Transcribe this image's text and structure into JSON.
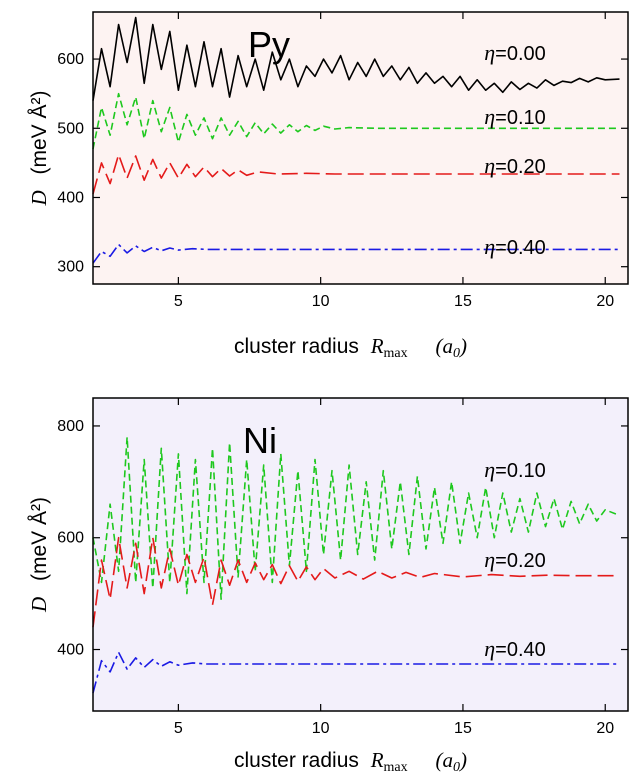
{
  "chart_data": [
    {
      "type": "line",
      "title": "Py",
      "xlabel": "cluster radius",
      "xlabel_symbol": "R",
      "xlabel_subscript": "max",
      "xlabel_unit_symbol": "a",
      "xlabel_unit_subscript": "0",
      "ylabel_symbol": "D",
      "ylabel_unit": "(meV Å²)",
      "xlim": [
        2,
        20.8
      ],
      "ylim": [
        275,
        668
      ],
      "xticks": [
        5,
        10,
        15,
        20
      ],
      "yticks": [
        300,
        400,
        500,
        600
      ],
      "background": "#fdf3f2",
      "series": [
        {
          "name": "η=0.00",
          "eta_symbol": "η",
          "eta_value": "=0.00",
          "color": "#000000",
          "style": "solid",
          "asymptote": 571,
          "x": [
            2.0,
            2.3,
            2.6,
            2.9,
            3.2,
            3.5,
            3.8,
            4.1,
            4.4,
            4.7,
            5.0,
            5.3,
            5.6,
            5.9,
            6.2,
            6.5,
            6.8,
            7.1,
            7.4,
            7.7,
            8.0,
            8.3,
            8.6,
            8.9,
            9.2,
            9.5,
            9.8,
            10.1,
            10.4,
            10.7,
            11.0,
            11.3,
            11.6,
            11.9,
            12.2,
            12.5,
            12.8,
            13.1,
            13.4,
            13.7,
            14.0,
            14.3,
            14.6,
            14.9,
            15.2,
            15.5,
            15.8,
            16.1,
            16.4,
            16.7,
            17.0,
            17.3,
            17.6,
            17.9,
            18.2,
            18.5,
            18.8,
            19.1,
            19.4,
            19.7,
            20.0,
            20.5
          ],
          "values": [
            540,
            615,
            560,
            650,
            595,
            660,
            565,
            650,
            585,
            640,
            555,
            620,
            560,
            625,
            560,
            615,
            545,
            605,
            560,
            600,
            555,
            610,
            570,
            600,
            560,
            590,
            575,
            600,
            580,
            605,
            570,
            595,
            575,
            600,
            575,
            590,
            570,
            588,
            565,
            580,
            565,
            575,
            560,
            575,
            555,
            570,
            555,
            565,
            552,
            567,
            556,
            565,
            558,
            570,
            562,
            568,
            566,
            572,
            567,
            573,
            570,
            571
          ]
        },
        {
          "name": "η=0.10",
          "eta_symbol": "η",
          "eta_value": "=0.10",
          "color": "#1ec81e",
          "style": "dashed",
          "asymptote": 500,
          "x": [
            2.0,
            2.3,
            2.6,
            2.9,
            3.2,
            3.5,
            3.8,
            4.1,
            4.4,
            4.7,
            5.0,
            5.3,
            5.6,
            5.9,
            6.2,
            6.5,
            6.8,
            7.1,
            7.4,
            7.7,
            8.0,
            8.3,
            8.6,
            8.9,
            9.2,
            9.5,
            9.8,
            10.1,
            10.5,
            11.0,
            12.0,
            13.0,
            14.0,
            15.0,
            16.0,
            17.0,
            18.0,
            19.0,
            20.5
          ],
          "values": [
            470,
            530,
            490,
            550,
            505,
            545,
            485,
            540,
            495,
            530,
            480,
            520,
            490,
            515,
            485,
            515,
            490,
            510,
            488,
            508,
            492,
            506,
            493,
            505,
            495,
            504,
            497,
            503,
            499,
            501,
            500,
            500,
            500,
            500,
            500,
            500,
            500,
            500,
            500
          ]
        },
        {
          "name": "η=0.20",
          "eta_symbol": "η",
          "eta_value": "=0.20",
          "color": "#e41a1a",
          "style": "longdash",
          "asymptote": 434,
          "x": [
            2.0,
            2.3,
            2.6,
            2.9,
            3.2,
            3.5,
            3.8,
            4.1,
            4.4,
            4.7,
            5.0,
            5.3,
            5.6,
            5.9,
            6.2,
            6.5,
            6.8,
            7.1,
            7.4,
            7.8,
            8.5,
            9.5,
            10.5,
            11.5,
            13.0,
            15.0,
            17.0,
            19.0,
            20.5
          ],
          "values": [
            405,
            450,
            420,
            462,
            428,
            460,
            425,
            455,
            428,
            450,
            428,
            448,
            430,
            444,
            430,
            442,
            431,
            440,
            432,
            437,
            434,
            435,
            434,
            434,
            434,
            434,
            434,
            434,
            434
          ]
        },
        {
          "name": "η=0.40",
          "eta_symbol": "η",
          "eta_value": "=0.40",
          "color": "#1a1ae4",
          "style": "dashdot",
          "asymptote": 325,
          "x": [
            2.0,
            2.3,
            2.6,
            2.9,
            3.2,
            3.5,
            3.8,
            4.1,
            4.4,
            4.7,
            5.0,
            5.5,
            6.0,
            7.0,
            8.0,
            10.0,
            12.0,
            15.0,
            18.0,
            20.5
          ],
          "values": [
            305,
            322,
            315,
            332,
            320,
            330,
            322,
            328,
            323,
            327,
            324,
            326,
            325,
            325,
            325,
            325,
            325,
            325,
            325,
            325
          ]
        }
      ]
    },
    {
      "type": "line",
      "title": "Ni",
      "xlabel": "cluster radius",
      "xlabel_symbol": "R",
      "xlabel_subscript": "max",
      "xlabel_unit_symbol": "a",
      "xlabel_unit_subscript": "0",
      "ylabel_symbol": "D",
      "ylabel_unit": "(meV Å²)",
      "xlim": [
        2,
        20.8
      ],
      "ylim": [
        290,
        850
      ],
      "xticks": [
        5,
        10,
        15,
        20
      ],
      "yticks": [
        400,
        600,
        800
      ],
      "background": "#f3f0fb",
      "series": [
        {
          "name": "η=0.10",
          "eta_symbol": "η",
          "eta_value": "=0.10",
          "color": "#1ec81e",
          "style": "dashed",
          "asymptote": 640,
          "x": [
            2.0,
            2.3,
            2.6,
            2.9,
            3.2,
            3.5,
            3.8,
            4.1,
            4.4,
            4.7,
            5.0,
            5.3,
            5.6,
            5.9,
            6.2,
            6.5,
            6.8,
            7.1,
            7.4,
            7.7,
            8.0,
            8.3,
            8.6,
            8.9,
            9.2,
            9.5,
            9.8,
            10.1,
            10.4,
            10.7,
            11.0,
            11.3,
            11.6,
            11.9,
            12.2,
            12.5,
            12.8,
            13.1,
            13.4,
            13.7,
            14.0,
            14.3,
            14.6,
            14.9,
            15.2,
            15.5,
            15.8,
            16.1,
            16.4,
            16.7,
            17.0,
            17.3,
            17.6,
            17.9,
            18.2,
            18.5,
            18.8,
            19.1,
            19.4,
            19.7,
            20.0,
            20.5
          ],
          "values": [
            600,
            520,
            660,
            540,
            780,
            520,
            740,
            510,
            760,
            520,
            750,
            500,
            740,
            520,
            760,
            490,
            770,
            530,
            740,
            540,
            730,
            520,
            750,
            550,
            720,
            540,
            740,
            570,
            720,
            560,
            730,
            570,
            700,
            560,
            720,
            580,
            700,
            570,
            710,
            580,
            690,
            590,
            700,
            590,
            680,
            600,
            690,
            600,
            680,
            610,
            670,
            610,
            680,
            620,
            670,
            615,
            665,
            625,
            660,
            630,
            650,
            640
          ]
        },
        {
          "name": "η=0.20",
          "eta_symbol": "η",
          "eta_value": "=0.20",
          "color": "#e41a1a",
          "style": "longdash",
          "asymptote": 532,
          "x": [
            2.0,
            2.3,
            2.6,
            2.9,
            3.2,
            3.5,
            3.8,
            4.1,
            4.4,
            4.7,
            5.0,
            5.3,
            5.6,
            5.9,
            6.2,
            6.5,
            6.8,
            7.1,
            7.4,
            7.7,
            8.0,
            8.3,
            8.6,
            8.9,
            9.2,
            9.5,
            9.8,
            10.1,
            10.5,
            11.0,
            11.5,
            12.0,
            12.5,
            13.0,
            13.5,
            14.0,
            15.0,
            16.0,
            17.0,
            18.0,
            19.0,
            20.5
          ],
          "values": [
            440,
            560,
            490,
            600,
            510,
            590,
            500,
            600,
            510,
            580,
            515,
            570,
            520,
            565,
            480,
            560,
            515,
            560,
            520,
            555,
            525,
            552,
            518,
            550,
            522,
            548,
            525,
            545,
            528,
            540,
            526,
            540,
            528,
            538,
            529,
            536,
            530,
            534,
            531,
            533,
            532,
            532
          ]
        },
        {
          "name": "η=0.40",
          "eta_symbol": "η",
          "eta_value": "=0.40",
          "color": "#1a1ae4",
          "style": "dashdot",
          "asymptote": 374,
          "x": [
            2.0,
            2.3,
            2.6,
            2.9,
            3.2,
            3.5,
            3.8,
            4.1,
            4.4,
            4.7,
            5.0,
            5.5,
            6.0,
            7.0,
            8.0,
            10.0,
            12.0,
            15.0,
            18.0,
            20.5
          ],
          "values": [
            322,
            380,
            360,
            395,
            365,
            385,
            368,
            382,
            370,
            378,
            372,
            376,
            374,
            374,
            374,
            374,
            374,
            374,
            374,
            374
          ]
        }
      ]
    }
  ]
}
